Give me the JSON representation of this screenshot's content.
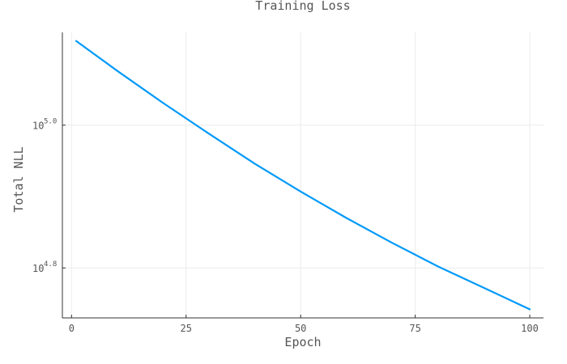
{
  "chart_data": {
    "type": "line",
    "title": "Training Loss",
    "xlabel": "Epoch",
    "ylabel": "Total NLL",
    "xlim": [
      -2,
      103
    ],
    "x_ticks": [
      0,
      25,
      50,
      75,
      100
    ],
    "y_scale": "log10",
    "ylim_log10": [
      4.73,
      5.13
    ],
    "y_ticks": [
      {
        "base": "10",
        "exponent": "4.8",
        "value_log10": 4.8
      },
      {
        "base": "10",
        "exponent": "5.0",
        "value_log10": 5.0
      }
    ],
    "grid": true,
    "legend": "none",
    "series": [
      {
        "color": "#009af9",
        "x": [
          1,
          10,
          20,
          30,
          40,
          50,
          60,
          70,
          80,
          90,
          100
        ],
        "y_log10": [
          5.118,
          5.076,
          5.031,
          4.988,
          4.946,
          4.907,
          4.87,
          4.835,
          4.802,
          4.772,
          4.742
        ]
      }
    ]
  }
}
